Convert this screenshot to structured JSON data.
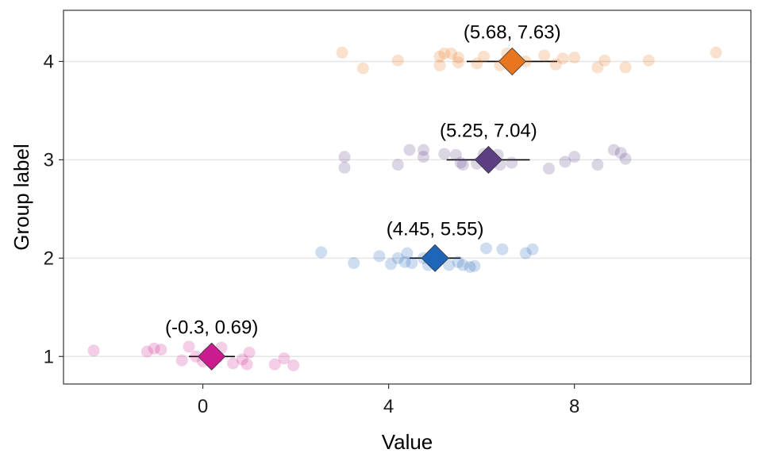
{
  "chart_data": {
    "type": "scatter",
    "title": "",
    "xlabel": "Value",
    "ylabel": "Group label",
    "xlim": [
      -3.0,
      11.8
    ],
    "ylim": [
      0.72,
      4.52
    ],
    "x_ticks": [
      0,
      4,
      8
    ],
    "x_tick_labels": [
      "0",
      "4",
      "8"
    ],
    "y_ticks": [
      1,
      2,
      3,
      4
    ],
    "y_tick_labels": [
      "1",
      "2",
      "3",
      "4"
    ],
    "grid": "horizontal",
    "legend": "none",
    "groups": [
      {
        "group": 1,
        "color": "#cc1a8f",
        "mean": 0.19,
        "ci": [
          -0.3,
          0.69
        ],
        "ci_label": "(-0.3, 0.69)",
        "points": [
          {
            "x": -2.35,
            "y": 1.06
          },
          {
            "x": -1.2,
            "y": 1.05
          },
          {
            "x": -1.05,
            "y": 1.08
          },
          {
            "x": -0.9,
            "y": 1.07
          },
          {
            "x": -0.45,
            "y": 0.96
          },
          {
            "x": -0.3,
            "y": 1.1
          },
          {
            "x": -0.15,
            "y": 1.0
          },
          {
            "x": 0.0,
            "y": 0.95
          },
          {
            "x": 0.1,
            "y": 1.03
          },
          {
            "x": 0.3,
            "y": 0.99
          },
          {
            "x": 0.4,
            "y": 1.09
          },
          {
            "x": 0.65,
            "y": 0.93
          },
          {
            "x": 0.85,
            "y": 0.97
          },
          {
            "x": 0.95,
            "y": 0.92
          },
          {
            "x": 1.0,
            "y": 1.04
          },
          {
            "x": 1.55,
            "y": 0.92
          },
          {
            "x": 1.75,
            "y": 0.98
          },
          {
            "x": 1.95,
            "y": 0.91
          }
        ]
      },
      {
        "group": 2,
        "color": "#1f66b8",
        "mean": 5.0,
        "ci": [
          4.45,
          5.55
        ],
        "ci_label": "(4.45, 5.55)",
        "points": [
          {
            "x": 2.55,
            "y": 2.06
          },
          {
            "x": 3.25,
            "y": 1.95
          },
          {
            "x": 3.8,
            "y": 2.02
          },
          {
            "x": 4.05,
            "y": 1.94
          },
          {
            "x": 4.2,
            "y": 2.0
          },
          {
            "x": 4.35,
            "y": 1.96
          },
          {
            "x": 4.4,
            "y": 2.05
          },
          {
            "x": 4.5,
            "y": 1.95
          },
          {
            "x": 4.75,
            "y": 2.0
          },
          {
            "x": 4.85,
            "y": 1.93
          },
          {
            "x": 5.3,
            "y": 1.93
          },
          {
            "x": 5.5,
            "y": 1.96
          },
          {
            "x": 5.6,
            "y": 1.93
          },
          {
            "x": 5.75,
            "y": 1.91
          },
          {
            "x": 5.85,
            "y": 1.92
          },
          {
            "x": 6.1,
            "y": 2.1
          },
          {
            "x": 6.45,
            "y": 2.09
          },
          {
            "x": 6.95,
            "y": 2.05
          },
          {
            "x": 7.1,
            "y": 2.09
          }
        ]
      },
      {
        "group": 3,
        "color": "#5b3f82",
        "mean": 6.15,
        "ci": [
          5.25,
          7.04
        ],
        "ci_label": "(5.25, 7.04)",
        "points": [
          {
            "x": 3.05,
            "y": 3.03
          },
          {
            "x": 3.05,
            "y": 2.92
          },
          {
            "x": 4.2,
            "y": 2.95
          },
          {
            "x": 4.45,
            "y": 3.1
          },
          {
            "x": 4.75,
            "y": 3.1
          },
          {
            "x": 4.75,
            "y": 3.03
          },
          {
            "x": 5.2,
            "y": 3.06
          },
          {
            "x": 5.45,
            "y": 3.05
          },
          {
            "x": 5.55,
            "y": 2.97
          },
          {
            "x": 5.6,
            "y": 2.95
          },
          {
            "x": 5.9,
            "y": 2.96
          },
          {
            "x": 6.05,
            "y": 3.06
          },
          {
            "x": 6.35,
            "y": 3.05
          },
          {
            "x": 6.4,
            "y": 2.95
          },
          {
            "x": 6.65,
            "y": 2.97
          },
          {
            "x": 7.45,
            "y": 2.91
          },
          {
            "x": 7.8,
            "y": 2.98
          },
          {
            "x": 8.0,
            "y": 3.03
          },
          {
            "x": 8.5,
            "y": 2.95
          },
          {
            "x": 8.85,
            "y": 3.1
          },
          {
            "x": 9.0,
            "y": 3.07
          },
          {
            "x": 9.1,
            "y": 3.01
          }
        ]
      },
      {
        "group": 4,
        "color": "#e8761e",
        "mean": 6.66,
        "ci": [
          5.68,
          7.63
        ],
        "ci_label": "(5.68, 7.63)",
        "points": [
          {
            "x": 3.0,
            "y": 4.09
          },
          {
            "x": 3.45,
            "y": 3.93
          },
          {
            "x": 4.2,
            "y": 4.01
          },
          {
            "x": 5.1,
            "y": 4.05
          },
          {
            "x": 5.1,
            "y": 3.96
          },
          {
            "x": 5.2,
            "y": 4.08
          },
          {
            "x": 5.35,
            "y": 4.08
          },
          {
            "x": 5.5,
            "y": 4.04
          },
          {
            "x": 5.5,
            "y": 3.99
          },
          {
            "x": 5.9,
            "y": 3.98
          },
          {
            "x": 6.05,
            "y": 4.05
          },
          {
            "x": 6.4,
            "y": 3.96
          },
          {
            "x": 6.55,
            "y": 4.08
          },
          {
            "x": 6.95,
            "y": 4.0
          },
          {
            "x": 7.35,
            "y": 4.06
          },
          {
            "x": 7.6,
            "y": 3.97
          },
          {
            "x": 7.75,
            "y": 4.03
          },
          {
            "x": 8.0,
            "y": 4.04
          },
          {
            "x": 8.5,
            "y": 3.94
          },
          {
            "x": 8.65,
            "y": 4.01
          },
          {
            "x": 9.1,
            "y": 3.94
          },
          {
            "x": 9.6,
            "y": 4.01
          },
          {
            "x": 11.05,
            "y": 4.09
          }
        ]
      }
    ]
  }
}
